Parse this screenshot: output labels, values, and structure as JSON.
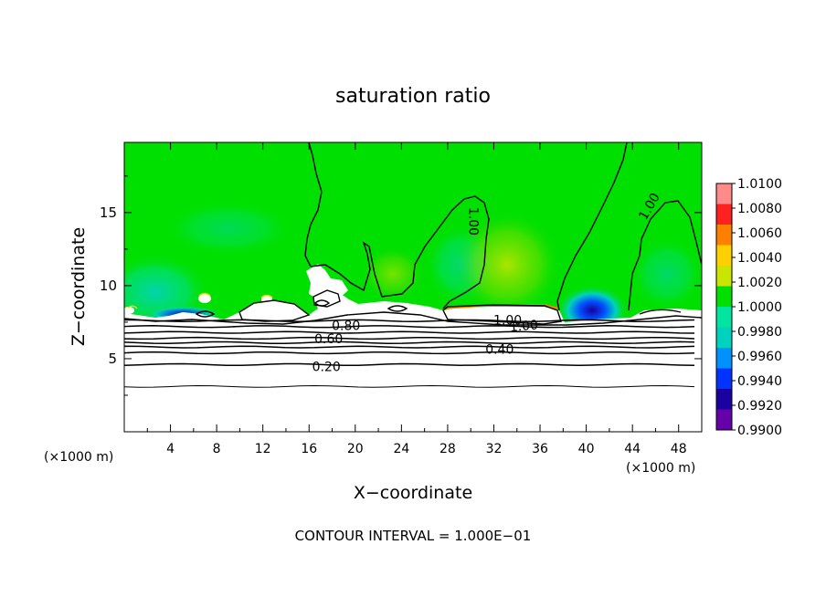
{
  "chart_data": {
    "type": "heatmap",
    "title": "saturation ratio",
    "xlabel": "X−coordinate",
    "ylabel": "Z−coordinate",
    "x_unit_left": "(×1000 m)",
    "x_unit_right": "(×1000 m)",
    "footer": "CONTOUR INTERVAL = 1.000E−01",
    "xlim": [
      0,
      50
    ],
    "ylim": [
      0,
      19.8
    ],
    "x_ticks": [
      4,
      8,
      12,
      16,
      20,
      24,
      28,
      32,
      36,
      40,
      44,
      48
    ],
    "y_ticks": [
      5,
      10,
      15
    ],
    "colorbar": {
      "min": 0.99,
      "max": 1.01,
      "tick_labels": [
        "1.0100",
        "1.0080",
        "1.0060",
        "1.0040",
        "1.0020",
        "1.0000",
        "0.9980",
        "0.9960",
        "0.9940",
        "0.9920",
        "0.9900"
      ],
      "colors": [
        "#6600aa",
        "#1a00a0",
        "#0033ff",
        "#0090ff",
        "#00d2c0",
        "#00e6a0",
        "#00e000",
        "#c8e600",
        "#ffd000",
        "#ff8000",
        "#ff2020",
        "#ff8a8a"
      ]
    },
    "contour_labels": [
      {
        "text": "1.00",
        "x": 30.2,
        "y": 14.4,
        "angle": 90
      },
      {
        "text": "1.00",
        "x": 45.5,
        "y": 15.4,
        "angle": -60
      },
      {
        "text": "1.00",
        "x": 33.2,
        "y": 7.6,
        "angle": 0
      },
      {
        "text": "1.00",
        "x": 34.6,
        "y": 7.2,
        "angle": -5
      },
      {
        "text": "0.80",
        "x": 19.2,
        "y": 7.2,
        "angle": 0
      },
      {
        "text": "0.60",
        "x": 17.7,
        "y": 6.3,
        "angle": 0
      },
      {
        "text": "0.40",
        "x": 32.5,
        "y": 5.6,
        "angle": 0
      },
      {
        "text": "0.20",
        "x": 17.5,
        "y": 4.4,
        "angle": 0
      }
    ],
    "stratified_contours": [
      {
        "level": 0.1,
        "z": 3.1
      },
      {
        "level": 0.2,
        "z": 4.6
      },
      {
        "level": 0.3,
        "z": 5.4
      },
      {
        "level": 0.4,
        "z": 5.8
      },
      {
        "level": 0.5,
        "z": 6.1
      },
      {
        "level": 0.6,
        "z": 6.4
      },
      {
        "level": 0.7,
        "z": 6.8
      },
      {
        "level": 0.8,
        "z": 7.2
      },
      {
        "level": 0.9,
        "z": 7.6
      }
    ]
  }
}
